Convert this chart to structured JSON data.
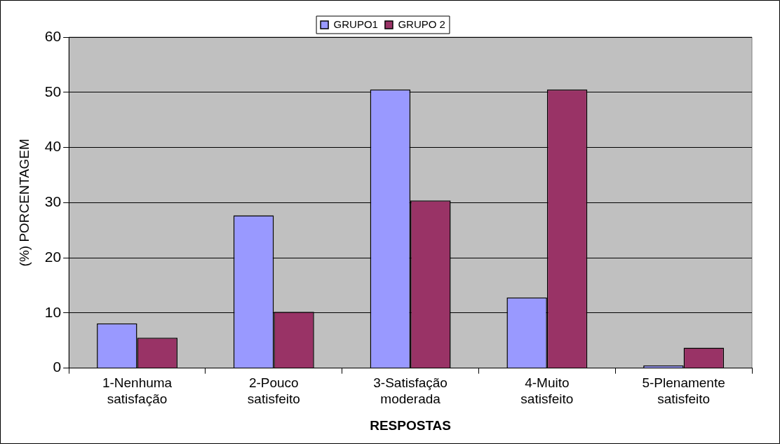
{
  "chart_data": {
    "type": "bar",
    "xlabel": "RESPOSTAS",
    "ylabel": "(%) PORCENTAGEM",
    "categories": [
      "1-Nenhuma satisfação",
      "2-Pouco satisfeito",
      "3-Satisfação moderada",
      "4-Muito satisfeito",
      "5-Plenamente satisfeito"
    ],
    "series": [
      {
        "name": "GRUPO1",
        "color": "#9999ff",
        "values": [
          8.1,
          27.7,
          50.5,
          12.8,
          0.5
        ]
      },
      {
        "name": "GRUPO 2",
        "color": "#993366",
        "values": [
          5.5,
          10.2,
          30.4,
          50.5,
          3.7
        ]
      }
    ],
    "ylim": [
      0,
      60
    ],
    "yticks": [
      0,
      10,
      20,
      30,
      40,
      50,
      60
    ],
    "grid": "y",
    "legend": "top"
  }
}
